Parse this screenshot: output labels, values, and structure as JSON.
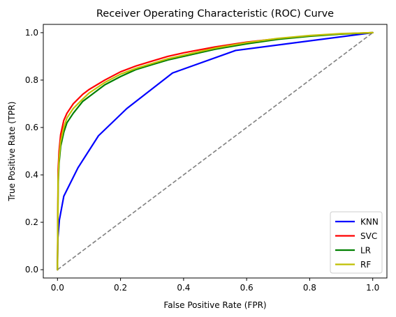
{
  "chart_data": {
    "type": "line",
    "title": "Receiver Operating Characteristic (ROC) Curve",
    "xlabel": "False Positive Rate (FPR)",
    "ylabel": "True Positive Rate (TPR)",
    "xlim": [
      -0.045,
      1.045
    ],
    "ylim": [
      -0.035,
      1.035
    ],
    "xticks": [
      "0.0",
      "0.2",
      "0.4",
      "0.6",
      "0.8",
      "1.0"
    ],
    "yticks": [
      "0.0",
      "0.2",
      "0.4",
      "0.6",
      "0.8",
      "1.0"
    ],
    "grid": false,
    "legend_position": "lower-right",
    "reference_line": {
      "color": "#808080",
      "style": "dashed",
      "x": [
        0,
        1
      ],
      "y": [
        0,
        1
      ]
    },
    "series": [
      {
        "name": "KNN",
        "color": "#0000ff",
        "x": [
          0,
          0.001,
          0.006,
          0.02,
          0.065,
          0.13,
          0.22,
          0.365,
          0.565,
          1.0
        ],
        "y": [
          0,
          0.13,
          0.21,
          0.31,
          0.43,
          0.565,
          0.68,
          0.83,
          0.925,
          1.0
        ]
      },
      {
        "name": "SVC",
        "color": "#ff0000",
        "x": [
          0,
          0.002,
          0.005,
          0.01,
          0.02,
          0.03,
          0.05,
          0.08,
          0.1,
          0.15,
          0.2,
          0.25,
          0.3,
          0.35,
          0.4,
          0.5,
          0.6,
          0.7,
          0.8,
          0.9,
          1.0
        ],
        "y": [
          0,
          0.42,
          0.5,
          0.57,
          0.63,
          0.66,
          0.7,
          0.74,
          0.76,
          0.8,
          0.835,
          0.86,
          0.88,
          0.9,
          0.915,
          0.94,
          0.96,
          0.975,
          0.987,
          0.995,
          1.0
        ]
      },
      {
        "name": "LR",
        "color": "#008000",
        "x": [
          0,
          0.002,
          0.005,
          0.01,
          0.02,
          0.03,
          0.05,
          0.08,
          0.1,
          0.15,
          0.2,
          0.25,
          0.3,
          0.35,
          0.4,
          0.5,
          0.6,
          0.7,
          0.8,
          0.9,
          1.0
        ],
        "y": [
          0,
          0.36,
          0.45,
          0.52,
          0.58,
          0.62,
          0.66,
          0.71,
          0.73,
          0.78,
          0.815,
          0.845,
          0.865,
          0.885,
          0.9,
          0.93,
          0.953,
          0.972,
          0.985,
          0.994,
          1.0
        ]
      },
      {
        "name": "RF",
        "color": "#bfbf00",
        "x": [
          0,
          0.002,
          0.005,
          0.01,
          0.02,
          0.03,
          0.05,
          0.08,
          0.1,
          0.15,
          0.2,
          0.25,
          0.3,
          0.35,
          0.4,
          0.5,
          0.6,
          0.7,
          0.8,
          0.9,
          1.0
        ],
        "y": [
          0,
          0.38,
          0.47,
          0.54,
          0.6,
          0.64,
          0.68,
          0.72,
          0.745,
          0.79,
          0.825,
          0.85,
          0.87,
          0.89,
          0.905,
          0.935,
          0.958,
          0.976,
          0.988,
          0.996,
          1.0
        ]
      }
    ]
  }
}
